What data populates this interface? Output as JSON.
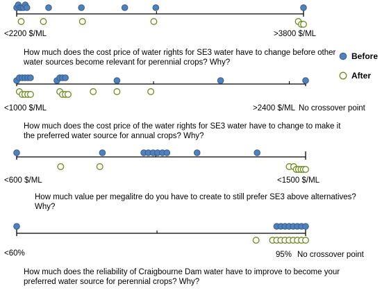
{
  "legend": {
    "before": "Before",
    "after": "After"
  },
  "colors": {
    "before_fill": "#4f81bd",
    "before_stroke": "#385d8a",
    "after_stroke": "#6e8a1f",
    "axis": "#000000"
  },
  "chart_data": [
    {
      "type": "scatter",
      "question": "How much does the cost price of water rights for SE3 water have to change before other water sources become relevant for perennial crops? Why?",
      "left_label": "<2200 $/ML",
      "right_label": ">3800 $/ML",
      "xlim": [
        2200,
        3800
      ],
      "minor_ticks": [
        2980
      ],
      "before": [
        2200,
        2209,
        2219,
        2228,
        2238,
        2248,
        2257,
        2378,
        2561,
        2803,
        2976,
        3800
      ],
      "after": [
        2225,
        2349,
        2567,
        2965,
        3771,
        3788,
        3800
      ]
    },
    {
      "type": "scatter",
      "question": "How much does the cost price of the water rights for SE3 water have to change to make it the preferred water source for annual crops? Why?",
      "left_label": "<1000 $/ML",
      "right_label": ">2400 $/ML",
      "extra_label": "No crossover point",
      "xlim": [
        1000,
        2400
      ],
      "minor_ticks": [
        1663,
        2321
      ],
      "before": [
        1000,
        1013,
        1027,
        1040,
        1054,
        1067,
        1195,
        1209,
        1222,
        1236,
        1486,
        1988,
        2400
      ],
      "after": [
        1013,
        1027,
        1040,
        1054,
        1067,
        1209,
        1222,
        1236,
        1249,
        1371,
        1486,
        1650
      ]
    },
    {
      "type": "scatter",
      "question": "How much value per megalitre do you have to create to still prefer SE3 above alternatives? Why?",
      "left_label": "<600 $/ML",
      "right_label": "<1500 $/ML",
      "xlim": [
        600,
        1500
      ],
      "minor_ticks": [
        1033
      ],
      "before": [
        600,
        867,
        996,
        1010,
        1025,
        1039,
        1054,
        1068,
        1162,
        1349
      ],
      "after": [
        737,
        859,
        1449,
        1463,
        1471,
        1478,
        1486,
        1493,
        1500
      ]
    },
    {
      "type": "scatter",
      "question": "How much does the reliability of Craigbourne Dam water have to improve to become your preferred water source for perennial crops? Why?",
      "left_label": "<60%",
      "right_label": "95%",
      "extra_label": "No crossover point",
      "xlim": [
        60,
        95
      ],
      "minor_ticks": [
        77
      ],
      "before": [
        60,
        91.5,
        92,
        92.5,
        93,
        93.5,
        94,
        94.5,
        95
      ],
      "after": [
        89,
        91,
        91.5,
        92,
        92.5,
        93,
        93.5,
        94,
        94.5,
        95
      ]
    }
  ]
}
